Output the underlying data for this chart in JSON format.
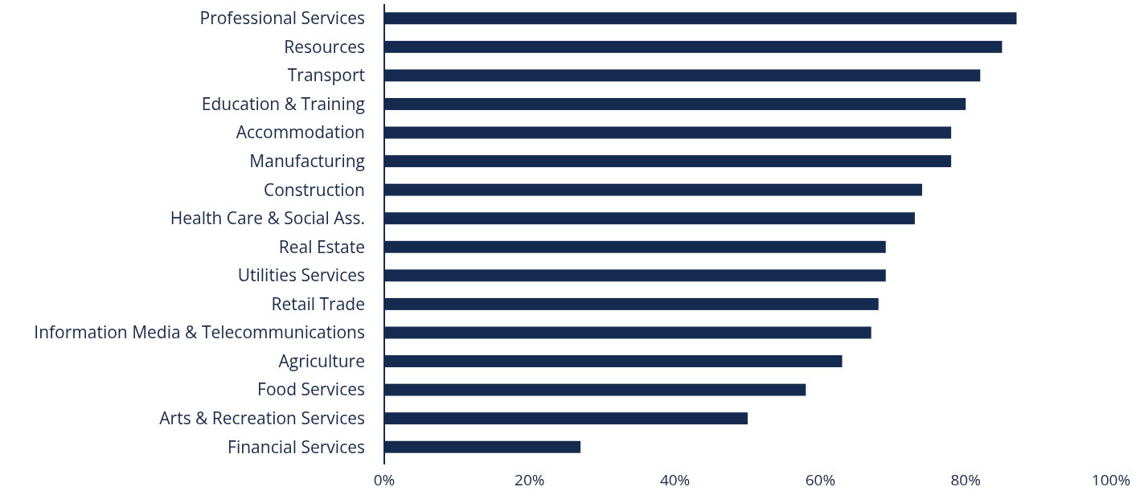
{
  "chart_data": {
    "type": "bar",
    "orientation": "horizontal",
    "categories": [
      "Professional Services",
      "Resources",
      "Transport",
      "Education & Training",
      "Accommodation",
      "Manufacturing",
      "Construction",
      "Health Care & Social Ass.",
      "Real Estate",
      "Utilities Services",
      "Retail Trade",
      "Information Media & Telecommunications",
      "Agriculture",
      "Food Services",
      "Arts & Recreation Services",
      "Financial Services"
    ],
    "values": [
      87,
      85,
      82,
      80,
      78,
      78,
      74,
      73,
      69,
      69,
      68,
      67,
      63,
      58,
      50,
      27
    ],
    "color": "#142a4f",
    "xlim": [
      0,
      100
    ],
    "xticks": [
      {
        "value": 0,
        "label": "0%"
      },
      {
        "value": 20,
        "label": "20%"
      },
      {
        "value": 40,
        "label": "40%"
      },
      {
        "value": 60,
        "label": "60%"
      },
      {
        "value": 80,
        "label": "80%"
      },
      {
        "value": 100,
        "label": "100%"
      }
    ],
    "grid": false
  }
}
